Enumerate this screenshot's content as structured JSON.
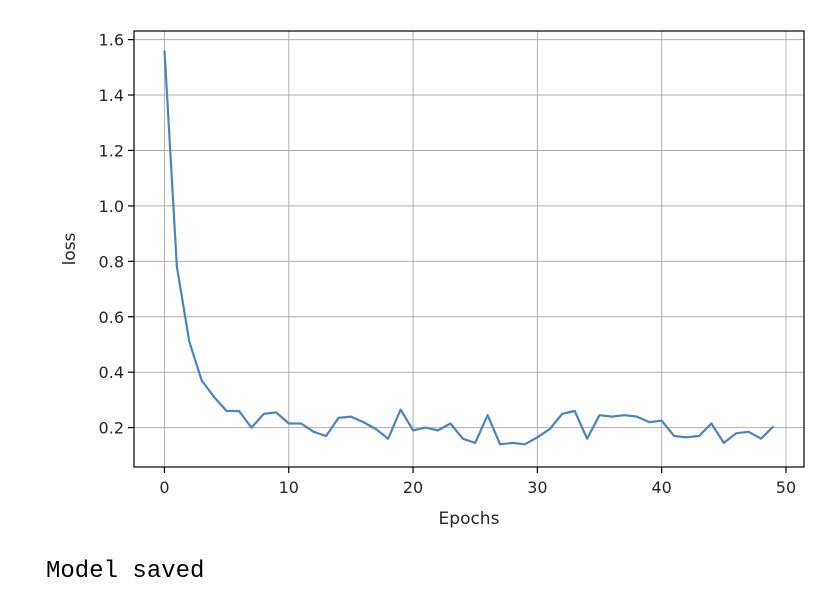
{
  "chart_data": {
    "type": "line",
    "xlabel": "Epochs",
    "ylabel": "loss",
    "xlim": [
      -2.45,
      51.45
    ],
    "ylim": [
      0.058,
      1.631
    ],
    "xticks": [
      0,
      10,
      20,
      30,
      40,
      50
    ],
    "yticks": [
      0.2,
      0.4,
      0.6,
      0.8,
      1.0,
      1.2,
      1.4,
      1.6
    ],
    "xtick_labels": [
      "0",
      "10",
      "20",
      "30",
      "40",
      "50"
    ],
    "ytick_labels": [
      "0.2",
      "0.4",
      "0.6",
      "0.8",
      "1.0",
      "1.2",
      "1.4",
      "1.6"
    ],
    "grid": true,
    "line_color": "#4c84bd",
    "series": [
      {
        "x": [
          0,
          1,
          2,
          3,
          4,
          5,
          6,
          7,
          8,
          9,
          10,
          11,
          12,
          13,
          14,
          15,
          16,
          17,
          18,
          19,
          20,
          21,
          22,
          23,
          24,
          25,
          26,
          27,
          28,
          29,
          30,
          31,
          32,
          33,
          34,
          35,
          36,
          37,
          38,
          39,
          40,
          41,
          42,
          43,
          44,
          45,
          46,
          47,
          48,
          49
        ],
        "values": [
          1.56,
          0.78,
          0.51,
          0.37,
          0.31,
          0.26,
          0.26,
          0.2,
          0.25,
          0.255,
          0.215,
          0.215,
          0.185,
          0.17,
          0.235,
          0.24,
          0.22,
          0.195,
          0.16,
          0.265,
          0.19,
          0.2,
          0.19,
          0.215,
          0.16,
          0.145,
          0.245,
          0.14,
          0.145,
          0.14,
          0.165,
          0.195,
          0.25,
          0.26,
          0.16,
          0.245,
          0.24,
          0.245,
          0.24,
          0.22,
          0.225,
          0.17,
          0.165,
          0.17,
          0.215,
          0.145,
          0.18,
          0.185,
          0.16,
          0.205
        ]
      }
    ]
  },
  "output": {
    "message": "Model saved"
  }
}
